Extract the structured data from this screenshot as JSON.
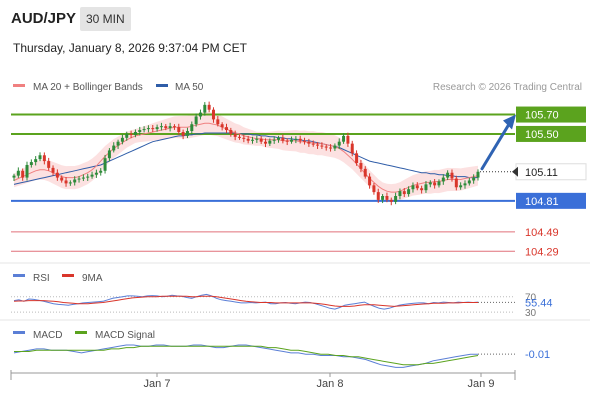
{
  "header": {
    "symbol": "AUD/JPY",
    "interval": "30 MIN",
    "timestamp": "Thursday, January 8, 2026 9:37:04 PM CET"
  },
  "legend": {
    "items": [
      {
        "label": "MA 20 + Bollinger Bands",
        "color": "#f08080"
      },
      {
        "label": "MA 50",
        "color": "#2f5da8"
      }
    ],
    "credit": "Research © 2026 Trading Central"
  },
  "colors": {
    "up_candle": "#2e8b3a",
    "down_candle": "#d9362b",
    "resistance": "#5ba31e",
    "pivot": "#3a6fd8",
    "support": "#e0707a",
    "bollinger_fill": "#fbdada",
    "ma20": "#f08080",
    "ma50": "#2f5da8",
    "projection": "#2f63b3",
    "rsi": "#5b7fd6",
    "rsi_ma": "#d9362b",
    "macd": "#5b7fd6",
    "macd_signal": "#5ba31e"
  },
  "chart_data": [
    {
      "type": "candlestick",
      "title": "",
      "x_ticks": [
        "Jan 7",
        "Jan 8",
        "Jan 9"
      ],
      "ylim": [
        104.2,
        105.85
      ],
      "current_price": 105.11,
      "levels": [
        {
          "value": 105.7,
          "label": "105.70",
          "kind": "resistance"
        },
        {
          "value": 105.5,
          "label": "105.50",
          "kind": "resistance"
        },
        {
          "value": 104.81,
          "label": "104.81",
          "kind": "pivot"
        },
        {
          "value": 104.49,
          "label": "104.49",
          "kind": "support"
        },
        {
          "value": 104.29,
          "label": "104.29",
          "kind": "support"
        }
      ],
      "projection": {
        "from": 105.11,
        "to": 105.7
      },
      "candles_close": [
        105.07,
        105.12,
        105.05,
        105.18,
        105.21,
        105.24,
        105.28,
        105.22,
        105.15,
        105.1,
        105.05,
        105.02,
        104.99,
        105.0,
        105.03,
        105.04,
        105.05,
        105.06,
        105.08,
        105.1,
        105.12,
        105.25,
        105.33,
        105.38,
        105.42,
        105.46,
        105.5,
        105.49,
        105.52,
        105.54,
        105.55,
        105.56,
        105.55,
        105.57,
        105.58,
        105.56,
        105.58,
        105.57,
        105.52,
        105.48,
        105.53,
        105.6,
        105.68,
        105.72,
        105.8,
        105.75,
        105.65,
        105.6,
        105.57,
        105.54,
        105.5,
        105.47,
        105.46,
        105.45,
        105.43,
        105.44,
        105.45,
        105.42,
        105.4,
        105.43,
        105.44,
        105.46,
        105.43,
        105.42,
        105.44,
        105.45,
        105.43,
        105.42,
        105.4,
        105.39,
        105.38,
        105.37,
        105.36,
        105.35,
        105.38,
        105.42,
        105.48,
        105.4,
        105.3,
        105.2,
        105.14,
        105.06,
        104.97,
        104.9,
        104.82,
        104.86,
        104.82,
        104.8,
        104.86,
        104.91,
        104.88,
        104.93,
        104.97,
        104.94,
        104.92,
        104.98,
        105.0,
        104.97,
        105.01,
        105.05,
        105.1,
        105.04,
        104.95,
        104.97,
        104.99,
        105.02,
        105.05,
        105.11
      ],
      "ma20": [
        105.02,
        105.04,
        105.06,
        105.08,
        105.1,
        105.12,
        105.13,
        105.13,
        105.12,
        105.1,
        105.08,
        105.06,
        105.05,
        105.05,
        105.05,
        105.06,
        105.08,
        105.1,
        105.13,
        105.17,
        105.22,
        105.27,
        105.31,
        105.35,
        105.38,
        105.41,
        105.44,
        105.46,
        105.48,
        105.49,
        105.5,
        105.51,
        105.52,
        105.53,
        105.54,
        105.55,
        105.56,
        105.57,
        105.57,
        105.57,
        105.57,
        105.58,
        105.59,
        105.6,
        105.61,
        105.61,
        105.6,
        105.59,
        105.57,
        105.55,
        105.53,
        105.51,
        105.5,
        105.48,
        105.47,
        105.46,
        105.45,
        105.45,
        105.44,
        105.44,
        105.44,
        105.44,
        105.43,
        105.43,
        105.43,
        105.43,
        105.42,
        105.42,
        105.41,
        105.41,
        105.4,
        105.4,
        105.39,
        105.38,
        105.37,
        105.35,
        105.32,
        105.28,
        105.24,
        105.19,
        105.14,
        105.09,
        105.04,
        105.0,
        104.96,
        104.93,
        104.91,
        104.9,
        104.9,
        104.91,
        104.93,
        104.95,
        104.97,
        104.98,
        104.99,
        105.0,
        105.0,
        105.01,
        105.01,
        105.02,
        105.03,
        105.03,
        105.03,
        105.03,
        105.04,
        105.05,
        105.06,
        105.07
      ],
      "ma50": [
        104.98,
        104.99,
        105.0,
        105.01,
        105.02,
        105.03,
        105.04,
        105.05,
        105.06,
        105.07,
        105.08,
        105.09,
        105.1,
        105.11,
        105.12,
        105.13,
        105.14,
        105.15,
        105.16,
        105.17,
        105.18,
        105.2,
        105.22,
        105.24,
        105.26,
        105.28,
        105.3,
        105.32,
        105.34,
        105.36,
        105.38,
        105.4,
        105.42,
        105.43,
        105.44,
        105.45,
        105.46,
        105.47,
        105.48,
        105.48,
        105.49,
        105.49,
        105.5,
        105.5,
        105.51,
        105.51,
        105.51,
        105.51,
        105.51,
        105.51,
        105.51,
        105.51,
        105.5,
        105.5,
        105.5,
        105.49,
        105.49,
        105.48,
        105.48,
        105.47,
        105.47,
        105.46,
        105.46,
        105.45,
        105.45,
        105.44,
        105.44,
        105.43,
        105.43,
        105.42,
        105.41,
        105.4,
        105.39,
        105.38,
        105.37,
        105.36,
        105.34,
        105.32,
        105.3,
        105.28,
        105.26,
        105.24,
        105.22,
        105.21,
        105.2,
        105.19,
        105.18,
        105.17,
        105.16,
        105.15,
        105.14,
        105.13,
        105.12,
        105.11,
        105.1,
        105.1,
        105.09,
        105.09,
        105.08,
        105.08,
        105.07,
        105.07,
        105.06,
        105.06,
        105.06,
        105.05,
        105.05,
        105.05
      ]
    },
    {
      "type": "line",
      "legend": [
        "RSI",
        "9MA"
      ],
      "ylim": [
        0,
        100
      ],
      "tick_labels": [
        "70",
        "30"
      ],
      "current_value": 55.44,
      "current_label": "55.44",
      "series": [
        {
          "name": "RSI",
          "values": [
            60,
            62,
            58,
            64,
            63,
            61,
            58,
            55,
            52,
            50,
            49,
            48,
            50,
            52,
            54,
            55,
            56,
            57,
            58,
            62,
            66,
            68,
            70,
            72,
            72,
            71,
            70,
            72,
            73,
            72,
            70,
            71,
            74,
            72,
            71,
            68,
            66,
            70,
            74,
            76,
            72,
            66,
            62,
            60,
            58,
            56,
            54,
            54,
            55,
            54,
            55,
            56,
            52,
            52,
            54,
            55,
            53,
            52,
            54,
            56,
            55,
            52,
            48,
            44,
            40,
            38,
            42,
            48,
            50,
            52,
            54,
            56,
            50,
            45,
            40,
            38,
            40,
            44,
            48,
            50,
            52,
            53,
            54,
            54,
            52,
            55,
            54,
            56,
            55,
            54,
            56,
            55,
            56,
            55,
            56
          ]
        },
        {
          "name": "9MA",
          "values": [
            58,
            59,
            59,
            60,
            60,
            60,
            60,
            59,
            58,
            57,
            55,
            54,
            53,
            52,
            52,
            52,
            53,
            54,
            55,
            57,
            59,
            61,
            63,
            65,
            67,
            68,
            69,
            70,
            70,
            70,
            71,
            71,
            71,
            71,
            71,
            71,
            70,
            70,
            71,
            71,
            71,
            70,
            68,
            66,
            64,
            62,
            60,
            58,
            57,
            56,
            55,
            55,
            55,
            54,
            54,
            54,
            54,
            54,
            54,
            54,
            54,
            53,
            52,
            50,
            48,
            46,
            45,
            45,
            45,
            46,
            48,
            49,
            49,
            49,
            48,
            47,
            46,
            45,
            46,
            47,
            48,
            49,
            50,
            51,
            52,
            53,
            53,
            53,
            54,
            54,
            54,
            55,
            55,
            55,
            55
          ]
        }
      ]
    },
    {
      "type": "line",
      "legend": [
        "MACD",
        "MACD Signal"
      ],
      "current_value": -0.01,
      "current_label": "-0.01",
      "series": [
        {
          "name": "MACD",
          "values": [
            0.0,
            0.01,
            0.02,
            0.03,
            0.03,
            0.02,
            0.02,
            0.02,
            0.01,
            0.0,
            0.01,
            0.02,
            0.03,
            0.04,
            0.05,
            0.06,
            0.06,
            0.05,
            0.05,
            0.06,
            0.06,
            0.05,
            0.05,
            0.05,
            0.06,
            0.06,
            0.05,
            0.04,
            0.04,
            0.05,
            0.06,
            0.06,
            0.05,
            0.04,
            0.03,
            0.02,
            0.01,
            0.0,
            0.0,
            -0.01,
            -0.01,
            -0.02,
            -0.02,
            -0.02,
            -0.03,
            -0.03,
            -0.04,
            -0.05,
            -0.07,
            -0.09,
            -0.1,
            -0.11,
            -0.11,
            -0.1,
            -0.09,
            -0.08,
            -0.06,
            -0.05,
            -0.04,
            -0.03,
            -0.02,
            -0.01,
            -0.01
          ]
        },
        {
          "name": "MACD Signal",
          "values": [
            0.01,
            0.01,
            0.01,
            0.02,
            0.02,
            0.02,
            0.02,
            0.02,
            0.02,
            0.02,
            0.02,
            0.02,
            0.02,
            0.03,
            0.03,
            0.04,
            0.04,
            0.05,
            0.05,
            0.05,
            0.05,
            0.05,
            0.05,
            0.05,
            0.05,
            0.05,
            0.05,
            0.05,
            0.05,
            0.05,
            0.05,
            0.05,
            0.05,
            0.05,
            0.04,
            0.04,
            0.03,
            0.02,
            0.02,
            0.01,
            0.0,
            -0.01,
            -0.01,
            -0.02,
            -0.02,
            -0.03,
            -0.03,
            -0.04,
            -0.05,
            -0.06,
            -0.07,
            -0.08,
            -0.09,
            -0.09,
            -0.09,
            -0.08,
            -0.08,
            -0.07,
            -0.06,
            -0.05,
            -0.04,
            -0.03,
            -0.02
          ]
        }
      ]
    }
  ]
}
